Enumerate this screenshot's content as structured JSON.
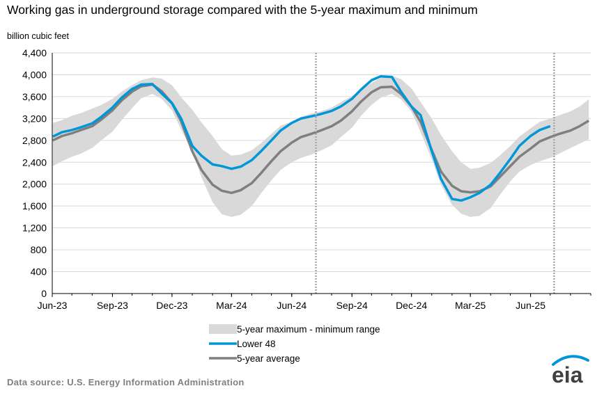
{
  "chart_data": {
    "type": "area",
    "title": "Working gas in underground  storage compared with the 5-year maximum and minimum",
    "ylabel": "billion cubic feet",
    "xlabel": "",
    "ylim": [
      0,
      4400
    ],
    "yticks": [
      0,
      400,
      800,
      1200,
      1600,
      2000,
      2400,
      2800,
      3200,
      3600,
      4000,
      4400
    ],
    "ytick_labels": [
      "0",
      "400",
      "800",
      "1,200",
      "1,600",
      "2,000",
      "2,400",
      "2,800",
      "3,200",
      "3,600",
      "4,000",
      "4,400"
    ],
    "xlim": [
      "2023-06-01",
      "2025-09-01"
    ],
    "xticks": [
      "2023-06-01",
      "2023-09-01",
      "2023-12-01",
      "2024-03-01",
      "2024-06-01",
      "2024-09-01",
      "2024-12-01",
      "2025-03-01",
      "2025-06-01"
    ],
    "xtick_labels": [
      "Jun-23",
      "Sep-23",
      "Dec-23",
      "Mar-24",
      "Jun-24",
      "Sep-24",
      "Dec-24",
      "Mar-25",
      "Jun-25"
    ],
    "grid": "horizontal",
    "legend_position": "bottom-center",
    "vertical_markers": [
      "2024-07-08",
      "2025-07-07"
    ],
    "colors": {
      "range": "#d9d9d9",
      "lower48": "#0096d7",
      "average": "#7f7f7f",
      "grid": "#d9d9d9",
      "marker": "#a6a6a6"
    },
    "x": [
      "2023-06-02",
      "2023-06-16",
      "2023-07-01",
      "2023-07-15",
      "2023-08-01",
      "2023-08-15",
      "2023-09-01",
      "2023-09-15",
      "2023-10-01",
      "2023-10-15",
      "2023-11-01",
      "2023-11-15",
      "2023-12-01",
      "2023-12-15",
      "2024-01-01",
      "2024-01-15",
      "2024-02-01",
      "2024-02-15",
      "2024-03-01",
      "2024-03-15",
      "2024-04-01",
      "2024-04-15",
      "2024-05-01",
      "2024-05-15",
      "2024-06-01",
      "2024-06-15",
      "2024-07-01",
      "2024-07-15",
      "2024-08-01",
      "2024-08-15",
      "2024-09-01",
      "2024-09-15",
      "2024-10-01",
      "2024-10-15",
      "2024-11-01",
      "2024-11-15",
      "2024-12-01",
      "2024-12-15",
      "2025-01-01",
      "2025-01-15",
      "2025-02-01",
      "2025-02-15",
      "2025-03-01",
      "2025-03-15",
      "2025-04-01",
      "2025-04-15",
      "2025-05-01",
      "2025-05-15",
      "2025-06-01",
      "2025-06-15",
      "2025-07-01",
      "2025-07-15",
      "2025-08-01",
      "2025-08-15",
      "2025-08-29"
    ],
    "series": [
      {
        "name": "5-year maximum - minimum range",
        "kind": "band",
        "max": [
          3120,
          3170,
          3250,
          3300,
          3380,
          3450,
          3560,
          3690,
          3810,
          3900,
          3950,
          3930,
          3810,
          3590,
          3360,
          3130,
          2880,
          2640,
          2520,
          2540,
          2620,
          2750,
          2920,
          3070,
          3140,
          3230,
          3290,
          3330,
          3400,
          3500,
          3610,
          3720,
          3850,
          3940,
          3980,
          3920,
          3750,
          3500,
          3200,
          2900,
          2600,
          2400,
          2280,
          2300,
          2390,
          2520,
          2700,
          2870,
          3020,
          3140,
          3200,
          3260,
          3330,
          3420,
          3550
        ],
        "min": [
          2330,
          2420,
          2500,
          2560,
          2660,
          2800,
          2960,
          3170,
          3390,
          3570,
          3650,
          3560,
          3350,
          3000,
          2600,
          2130,
          1670,
          1450,
          1400,
          1440,
          1600,
          1830,
          2070,
          2260,
          2400,
          2480,
          2540,
          2610,
          2710,
          2860,
          3030,
          3250,
          3450,
          3580,
          3650,
          3550,
          3330,
          2950,
          2450,
          1990,
          1620,
          1460,
          1400,
          1420,
          1560,
          1800,
          2050,
          2230,
          2350,
          2420,
          2480,
          2560,
          2660,
          2740,
          2820
        ]
      },
      {
        "name": "Lower 48",
        "kind": "line",
        "values": [
          2870,
          2950,
          2990,
          3040,
          3110,
          3230,
          3400,
          3580,
          3740,
          3820,
          3830,
          3660,
          3480,
          3200,
          2700,
          2520,
          2360,
          2330,
          2280,
          2320,
          2440,
          2600,
          2800,
          2980,
          3120,
          3200,
          3240,
          3280,
          3340,
          3420,
          3560,
          3730,
          3900,
          3970,
          3960,
          3690,
          3420,
          3260,
          2600,
          2100,
          1730,
          1700,
          1760,
          1840,
          1990,
          2200,
          2460,
          2700,
          2880,
          2990,
          3060,
          null,
          null,
          null,
          null
        ]
      },
      {
        "name": "5-year average",
        "kind": "line",
        "values": [
          2800,
          2880,
          2930,
          2990,
          3060,
          3180,
          3350,
          3530,
          3690,
          3790,
          3820,
          3700,
          3480,
          3150,
          2600,
          2260,
          1990,
          1880,
          1840,
          1890,
          2020,
          2200,
          2420,
          2600,
          2760,
          2860,
          2920,
          2980,
          3060,
          3160,
          3330,
          3510,
          3680,
          3770,
          3780,
          3650,
          3420,
          3140,
          2620,
          2230,
          1970,
          1870,
          1850,
          1870,
          1960,
          2130,
          2330,
          2500,
          2650,
          2780,
          2860,
          2920,
          2980,
          3060,
          3160
        ]
      }
    ],
    "legend": [
      "5-year maximum - minimum range",
      "Lower 48",
      "5-year average"
    ]
  },
  "footer": {
    "source": "Data source:  U.S. Energy Information Administration",
    "logo_text": "eia"
  }
}
